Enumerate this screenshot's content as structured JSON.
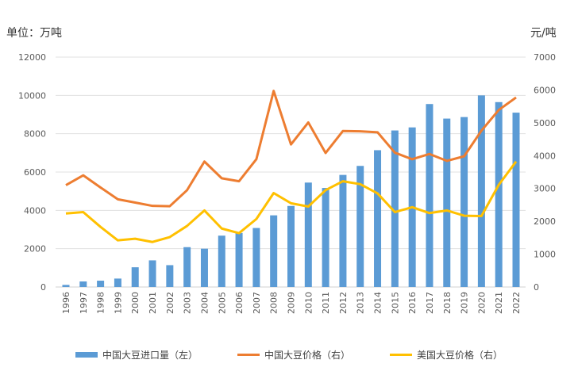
{
  "chart_data": {
    "type": "bar+line",
    "left_unit": "单位：万吨",
    "right_unit": "元/吨",
    "categories": [
      "1996",
      "1997",
      "1998",
      "1999",
      "2000",
      "2001",
      "2002",
      "2003",
      "2004",
      "2005",
      "2006",
      "2007",
      "2008",
      "2009",
      "2010",
      "2011",
      "2012",
      "2013",
      "2014",
      "2015",
      "2016",
      "2017",
      "2018",
      "2019",
      "2020",
      "2021",
      "2022"
    ],
    "left_axis": {
      "ylim": [
        0,
        12000
      ],
      "ticks": [
        "0",
        "2000",
        "4000",
        "6000",
        "8000",
        "10000",
        "12000"
      ]
    },
    "right_axis": {
      "ylim": [
        0,
        7000
      ],
      "ticks": [
        "0",
        "1000",
        "2000",
        "3000",
        "4000",
        "5000",
        "6000",
        "7000"
      ]
    },
    "grid": true,
    "legend_position": "bottom",
    "series": [
      {
        "name": "中国大豆进口量（左）",
        "type": "bar",
        "axis": "left",
        "color": "#5b9bd5",
        "values": [
          110,
          290,
          330,
          440,
          1030,
          1390,
          1140,
          2080,
          2000,
          2680,
          2820,
          3080,
          3740,
          4230,
          5450,
          5170,
          5850,
          6320,
          7140,
          8170,
          8330,
          9550,
          8790,
          8870,
          10000,
          9650,
          9100
        ]
      },
      {
        "name": "中国大豆价格（右）",
        "type": "line",
        "axis": "right",
        "color": "#ed7d31",
        "values": [
          3100,
          3400,
          3030,
          2670,
          2570,
          2470,
          2460,
          2950,
          3820,
          3310,
          3220,
          3890,
          5970,
          4340,
          5010,
          4080,
          4750,
          4740,
          4710,
          4090,
          3890,
          4050,
          3840,
          3980,
          4760,
          5390,
          5770
        ]
      },
      {
        "name": "美国大豆价格（右）",
        "type": "line",
        "axis": "right",
        "color": "#ffc000",
        "values": [
          2240,
          2280,
          1830,
          1420,
          1470,
          1370,
          1520,
          1860,
          2330,
          1780,
          1640,
          2070,
          2860,
          2550,
          2450,
          2950,
          3220,
          3130,
          2850,
          2280,
          2430,
          2250,
          2330,
          2170,
          2160,
          3110,
          3820
        ]
      }
    ]
  }
}
